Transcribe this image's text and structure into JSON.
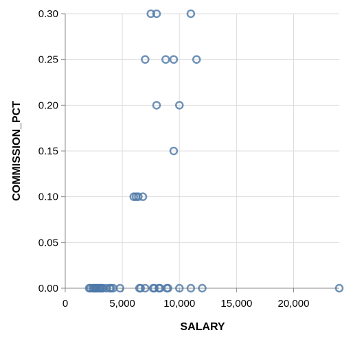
{
  "chart_data": {
    "type": "scatter",
    "xlabel": "SALARY",
    "ylabel": "COMMISSION_PCT",
    "xlim": [
      0,
      24000
    ],
    "ylim": [
      0,
      0.3
    ],
    "x_ticks": [
      "0",
      "5,000",
      "10,000",
      "15,000",
      "20,000"
    ],
    "x_tick_values": [
      0,
      5000,
      10000,
      15000,
      20000
    ],
    "y_ticks": [
      "0.00",
      "0.05",
      "0.10",
      "0.15",
      "0.20",
      "0.25",
      "0.30"
    ],
    "y_tick_values": [
      0,
      0.05,
      0.1,
      0.15,
      0.2,
      0.25,
      0.3
    ],
    "grid": true,
    "marker": "open-circle",
    "color": "#4c78a8",
    "points": [
      {
        "x": 7500,
        "y": 0.3
      },
      {
        "x": 8000,
        "y": 0.3
      },
      {
        "x": 11000,
        "y": 0.3
      },
      {
        "x": 7000,
        "y": 0.25
      },
      {
        "x": 8800,
        "y": 0.25
      },
      {
        "x": 9500,
        "y": 0.25
      },
      {
        "x": 11500,
        "y": 0.25
      },
      {
        "x": 8000,
        "y": 0.2
      },
      {
        "x": 10000,
        "y": 0.2
      },
      {
        "x": 9500,
        "y": 0.15
      },
      {
        "x": 6000,
        "y": 0.1
      },
      {
        "x": 6200,
        "y": 0.1
      },
      {
        "x": 6400,
        "y": 0.1
      },
      {
        "x": 6800,
        "y": 0.1
      },
      {
        "x": 2100,
        "y": 0
      },
      {
        "x": 2200,
        "y": 0
      },
      {
        "x": 2400,
        "y": 0
      },
      {
        "x": 2500,
        "y": 0
      },
      {
        "x": 2600,
        "y": 0
      },
      {
        "x": 2700,
        "y": 0
      },
      {
        "x": 2800,
        "y": 0
      },
      {
        "x": 2900,
        "y": 0
      },
      {
        "x": 3000,
        "y": 0
      },
      {
        "x": 3100,
        "y": 0
      },
      {
        "x": 3200,
        "y": 0
      },
      {
        "x": 3300,
        "y": 0
      },
      {
        "x": 3600,
        "y": 0
      },
      {
        "x": 3900,
        "y": 0
      },
      {
        "x": 4000,
        "y": 0
      },
      {
        "x": 4200,
        "y": 0
      },
      {
        "x": 4800,
        "y": 0
      },
      {
        "x": 6500,
        "y": 0
      },
      {
        "x": 6600,
        "y": 0
      },
      {
        "x": 7000,
        "y": 0
      },
      {
        "x": 7700,
        "y": 0
      },
      {
        "x": 7800,
        "y": 0
      },
      {
        "x": 8200,
        "y": 0
      },
      {
        "x": 8300,
        "y": 0
      },
      {
        "x": 9000,
        "y": 0
      },
      {
        "x": 8900,
        "y": 0
      },
      {
        "x": 10000,
        "y": 0
      },
      {
        "x": 11000,
        "y": 0
      },
      {
        "x": 12000,
        "y": 0
      },
      {
        "x": 24000,
        "y": 0
      }
    ]
  }
}
